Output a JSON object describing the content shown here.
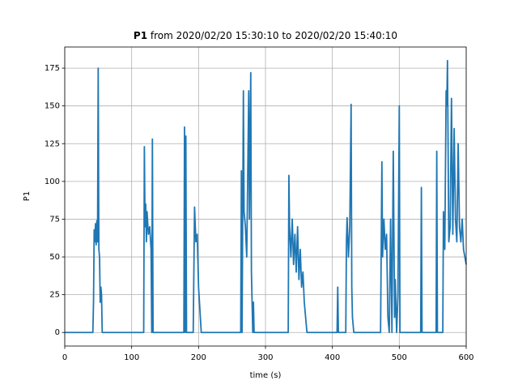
{
  "chart_data": {
    "type": "line",
    "title_bold": "P1",
    "title": "from 2020/02/20 15:30:10 to 2020/02/20 15:40:10",
    "x_label": "time (s)",
    "y_label": "P1",
    "x": [
      0,
      42,
      43,
      44,
      45,
      46,
      47,
      48,
      49,
      50,
      51,
      52,
      53,
      54,
      55,
      56,
      118,
      119,
      120,
      121,
      122,
      123,
      125,
      127,
      129,
      130,
      131,
      132,
      178,
      179,
      180,
      181,
      182,
      192,
      194,
      196,
      198,
      200,
      202,
      204,
      263,
      264,
      265,
      267,
      268,
      270,
      272,
      275,
      276,
      278,
      279,
      280,
      281,
      282,
      283,
      334,
      335,
      336,
      338,
      340,
      342,
      344,
      346,
      348,
      350,
      352,
      354,
      356,
      358,
      360,
      362,
      407,
      408,
      409,
      420,
      421,
      422,
      424,
      426,
      428,
      429,
      430,
      432,
      472,
      474,
      475,
      477,
      479,
      481,
      483,
      485,
      487,
      489,
      491,
      493,
      494,
      496,
      498,
      500,
      501,
      532,
      533,
      534,
      555,
      556,
      557,
      565,
      566,
      568,
      570,
      571,
      572,
      574,
      576,
      578,
      580,
      582,
      584,
      586,
      588,
      590,
      592,
      594,
      596,
      598,
      600
    ],
    "values": [
      0,
      0,
      20,
      68,
      60,
      72,
      58,
      74,
      60,
      175,
      55,
      50,
      20,
      30,
      25,
      0,
      0,
      123,
      70,
      85,
      60,
      80,
      65,
      70,
      55,
      0,
      128,
      0,
      0,
      136,
      0,
      130,
      0,
      0,
      83,
      60,
      65,
      30,
      15,
      0,
      0,
      107,
      0,
      160,
      80,
      70,
      50,
      160,
      75,
      172,
      40,
      20,
      0,
      20,
      0,
      0,
      104,
      70,
      50,
      75,
      45,
      65,
      40,
      70,
      35,
      55,
      30,
      40,
      20,
      10,
      0,
      0,
      30,
      0,
      0,
      60,
      76,
      50,
      70,
      151,
      30,
      10,
      0,
      0,
      113,
      50,
      75,
      55,
      65,
      10,
      0,
      75,
      0,
      120,
      10,
      35,
      0,
      25,
      150,
      0,
      0,
      96,
      0,
      0,
      120,
      0,
      0,
      80,
      55,
      160,
      150,
      180,
      60,
      70,
      155,
      65,
      135,
      75,
      60,
      125,
      70,
      60,
      75,
      55,
      50,
      45
    ],
    "color": "#1f77b4",
    "xlim": [
      0,
      600
    ],
    "xticks": [
      0,
      100,
      200,
      300,
      400,
      500,
      600
    ],
    "ylim": [
      -9,
      189
    ],
    "yticks": [
      0,
      25,
      50,
      75,
      100,
      125,
      150,
      175
    ],
    "grid": true
  }
}
